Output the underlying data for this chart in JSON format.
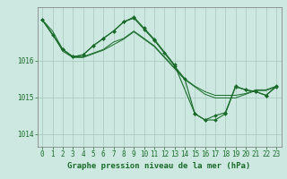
{
  "background_color": "#cce8e0",
  "plot_bg_color": "#cce8e0",
  "line_color": "#1a6b2a",
  "grid_color": "#a8c8bc",
  "xlabel": "Graphe pression niveau de la mer (hPa)",
  "xlabel_fontsize": 6.5,
  "tick_fontsize": 5.5,
  "ylim": [
    1013.65,
    1017.45
  ],
  "xlim": [
    -0.5,
    23.5
  ],
  "yticks": [
    1014,
    1015,
    1016
  ],
  "xticks": [
    0,
    1,
    2,
    3,
    4,
    5,
    6,
    7,
    8,
    9,
    10,
    11,
    12,
    13,
    14,
    15,
    16,
    17,
    18,
    19,
    20,
    21,
    22,
    23
  ],
  "line1_x": [
    0,
    1,
    2,
    3,
    4,
    5,
    6,
    7,
    8,
    9,
    10,
    11,
    12,
    13,
    14,
    15,
    16,
    17,
    18,
    19,
    20,
    21,
    22,
    23
  ],
  "line1_y": [
    1017.1,
    1016.8,
    1016.3,
    1016.1,
    1016.1,
    1016.2,
    1016.3,
    1016.5,
    1016.6,
    1016.8,
    1016.6,
    1016.4,
    1016.1,
    1015.8,
    1015.5,
    1015.3,
    1015.15,
    1015.05,
    1015.05,
    1015.05,
    1015.1,
    1015.2,
    1015.2,
    1015.3
  ],
  "line2_x": [
    0,
    1,
    2,
    3,
    4,
    5,
    6,
    7,
    8,
    9,
    10,
    11,
    12,
    13,
    14,
    15,
    16,
    17,
    18,
    19,
    20,
    21,
    22,
    23
  ],
  "line2_y": [
    1017.1,
    1016.72,
    1016.25,
    1016.08,
    1016.08,
    1016.18,
    1016.28,
    1016.43,
    1016.58,
    1016.78,
    1016.58,
    1016.38,
    1016.08,
    1015.78,
    1015.48,
    1015.28,
    1015.08,
    1014.98,
    1014.98,
    1014.98,
    1015.08,
    1015.18,
    1015.18,
    1015.28
  ],
  "line3_x": [
    0,
    1,
    2,
    3,
    4,
    5,
    6,
    7,
    8,
    9,
    10,
    11,
    12,
    13,
    14,
    15,
    16,
    17,
    18,
    19,
    20,
    21,
    22,
    23
  ],
  "line3_y": [
    1017.1,
    1016.7,
    1016.3,
    1016.1,
    1016.15,
    1016.4,
    1016.6,
    1016.8,
    1017.05,
    1017.15,
    1016.85,
    1016.55,
    1016.2,
    1015.85,
    1015.5,
    1014.55,
    1014.38,
    1014.38,
    1014.55,
    1015.28,
    1015.2,
    1015.15,
    1015.05,
    1015.28
  ],
  "line4_x": [
    0,
    2,
    3,
    4,
    5,
    6,
    7,
    8,
    9,
    10,
    11,
    13,
    15,
    16,
    17,
    18,
    19,
    20,
    21,
    22,
    23
  ],
  "line4_y": [
    1017.1,
    1016.3,
    1016.1,
    1016.15,
    1016.4,
    1016.6,
    1016.8,
    1017.05,
    1017.18,
    1016.88,
    1016.58,
    1015.88,
    1014.55,
    1014.38,
    1014.5,
    1014.58,
    1015.3,
    1015.2,
    1015.15,
    1015.05,
    1015.3
  ]
}
